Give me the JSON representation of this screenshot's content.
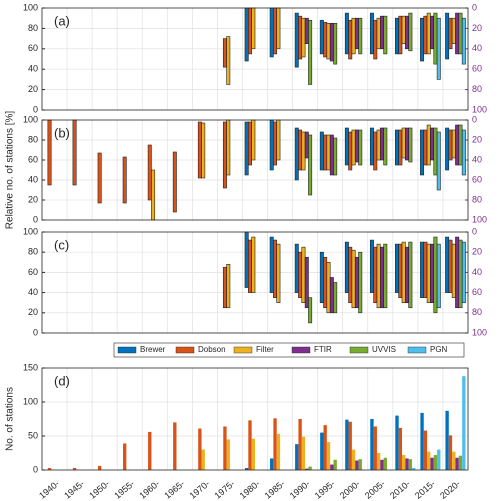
{
  "chart_data": [
    {
      "type": "range-bar",
      "label": "(a)",
      "categories": [
        null,
        null,
        null,
        null,
        null,
        null,
        null,
        null,
        null,
        null,
        null,
        null,
        null,
        null,
        null,
        null,
        null
      ],
      "ylim": [
        0,
        100
      ],
      "yticks": [
        0,
        20,
        40,
        60,
        80,
        100
      ],
      "y2lim": [
        100,
        0
      ],
      "y2ticks": [
        0,
        20,
        40,
        60,
        80,
        100
      ],
      "y2color": "#7E2F8E",
      "grid": true,
      "series": [
        {
          "name": "Brewer",
          "color": "#0072BD",
          "values": [
            null,
            null,
            null,
            null,
            null,
            null,
            null,
            null,
            [
              48,
              100
            ],
            [
              52,
              100
            ],
            [
              42,
              95
            ],
            [
              55,
              88
            ],
            [
              55,
              95
            ],
            [
              55,
              95
            ],
            [
              55,
              90
            ],
            [
              48,
              90
            ],
            [
              50,
              95
            ]
          ]
        },
        {
          "name": "Dobson",
          "color": "#D95319",
          "values": [
            null,
            null,
            null,
            null,
            null,
            null,
            null,
            [
              42,
              70
            ],
            [
              55,
              100
            ],
            [
              55,
              100
            ],
            [
              50,
              92
            ],
            [
              52,
              86
            ],
            [
              50,
              88
            ],
            [
              50,
              88
            ],
            [
              55,
              92
            ],
            [
              55,
              92
            ],
            [
              60,
              90
            ]
          ]
        },
        {
          "name": "Filter",
          "color": "#EDB120",
          "values": [
            null,
            null,
            null,
            null,
            null,
            null,
            null,
            [
              25,
              72
            ],
            [
              60,
              100
            ],
            [
              60,
              100
            ],
            [
              52,
              90
            ],
            [
              50,
              85
            ],
            [
              55,
              90
            ],
            [
              60,
              90
            ],
            [
              65,
              92
            ],
            [
              55,
              95
            ],
            [
              65,
              90
            ]
          ]
        },
        {
          "name": "FTIR",
          "color": "#7E2F8E",
          "values": [
            null,
            null,
            null,
            null,
            null,
            null,
            null,
            null,
            null,
            null,
            [
              65,
              90
            ],
            [
              48,
              85
            ],
            [
              60,
              90
            ],
            [
              60,
              92
            ],
            [
              60,
              92
            ],
            [
              60,
              92
            ],
            [
              55,
              95
            ]
          ]
        },
        {
          "name": "UVVIS",
          "color": "#77AC30",
          "values": [
            null,
            null,
            null,
            null,
            null,
            null,
            null,
            null,
            null,
            null,
            [
              25,
              88
            ],
            [
              45,
              85
            ],
            [
              55,
              90
            ],
            [
              55,
              92
            ],
            [
              58,
              95
            ],
            [
              45,
              95
            ],
            [
              55,
              95
            ]
          ]
        },
        {
          "name": "PGN",
          "color": "#4DBEEE",
          "values": [
            null,
            null,
            null,
            null,
            null,
            null,
            null,
            null,
            null,
            null,
            null,
            null,
            null,
            null,
            null,
            [
              30,
              90
            ],
            [
              45,
              90
            ]
          ]
        }
      ]
    },
    {
      "type": "range-bar",
      "label": "(b)",
      "ylabel": "Relative no. of stations [%]",
      "categories": [
        null,
        null,
        null,
        null,
        null,
        null,
        null,
        null,
        null,
        null,
        null,
        null,
        null,
        null,
        null,
        null,
        null
      ],
      "ylim": [
        0,
        100
      ],
      "yticks": [
        0,
        20,
        40,
        60,
        80,
        100
      ],
      "y2lim": [
        100,
        0
      ],
      "y2ticks": [
        0,
        20,
        40,
        60,
        80,
        100
      ],
      "y2color": "#7E2F8E",
      "grid": true,
      "series": [
        {
          "name": "Brewer",
          "color": "#0072BD",
          "values": [
            null,
            null,
            null,
            null,
            null,
            null,
            null,
            null,
            [
              45,
              98
            ],
            [
              50,
              100
            ],
            [
              40,
              92
            ],
            [
              50,
              88
            ],
            [
              55,
              92
            ],
            [
              55,
              92
            ],
            [
              55,
              90
            ],
            [
              45,
              90
            ],
            [
              50,
              92
            ]
          ]
        },
        {
          "name": "Dobson",
          "color": "#D95319",
          "values": [
            [
              35,
              100
            ],
            [
              35,
              100
            ],
            [
              17,
              67
            ],
            [
              17,
              63
            ],
            [
              20,
              75
            ],
            [
              8,
              68
            ],
            [
              42,
              98
            ],
            [
              32,
              98
            ],
            [
              55,
              98
            ],
            [
              55,
              98
            ],
            [
              50,
              90
            ],
            [
              50,
              85
            ],
            [
              50,
              88
            ],
            [
              50,
              88
            ],
            [
              55,
              90
            ],
            [
              55,
              90
            ],
            [
              60,
              90
            ]
          ]
        },
        {
          "name": "Filter",
          "color": "#EDB120",
          "values": [
            null,
            null,
            null,
            null,
            [
              0,
              50
            ],
            null,
            [
              42,
              97
            ],
            [
              45,
              100
            ],
            [
              60,
              100
            ],
            [
              60,
              100
            ],
            [
              50,
              88
            ],
            [
              50,
              85
            ],
            [
              55,
              90
            ],
            [
              60,
              90
            ],
            [
              62,
              92
            ],
            [
              55,
              95
            ],
            [
              62,
              90
            ]
          ]
        },
        {
          "name": "FTIR",
          "color": "#7E2F8E",
          "values": [
            null,
            null,
            null,
            null,
            null,
            null,
            null,
            null,
            null,
            null,
            [
              62,
              88
            ],
            [
              45,
              85
            ],
            [
              58,
              90
            ],
            [
              60,
              92
            ],
            [
              60,
              92
            ],
            [
              60,
              92
            ],
            [
              55,
              95
            ]
          ]
        },
        {
          "name": "UVVIS",
          "color": "#77AC30",
          "values": [
            null,
            null,
            null,
            null,
            null,
            null,
            null,
            null,
            null,
            null,
            [
              25,
              85
            ],
            [
              45,
              82
            ],
            [
              55,
              90
            ],
            [
              55,
              92
            ],
            [
              58,
              92
            ],
            [
              45,
              92
            ],
            [
              55,
              95
            ]
          ]
        },
        {
          "name": "PGN",
          "color": "#4DBEEE",
          "values": [
            null,
            null,
            null,
            null,
            null,
            null,
            null,
            null,
            null,
            null,
            null,
            null,
            null,
            null,
            null,
            [
              30,
              88
            ],
            [
              45,
              90
            ]
          ]
        }
      ]
    },
    {
      "type": "range-bar",
      "label": "(c)",
      "categories": [
        null,
        null,
        null,
        null,
        null,
        null,
        null,
        null,
        null,
        null,
        null,
        null,
        null,
        null,
        null,
        null,
        null
      ],
      "ylim": [
        0,
        100
      ],
      "yticks": [
        0,
        20,
        40,
        60,
        80,
        100
      ],
      "y2lim": [
        100,
        0
      ],
      "y2ticks": [
        0,
        20,
        40,
        60,
        80,
        100
      ],
      "y2color": "#7E2F8E",
      "grid": true,
      "series": [
        {
          "name": "Brewer",
          "color": "#0072BD",
          "values": [
            null,
            null,
            null,
            null,
            null,
            null,
            null,
            null,
            [
              45,
              100
            ],
            [
              40,
              95
            ],
            [
              40,
              88
            ],
            [
              30,
              80
            ],
            [
              40,
              90
            ],
            [
              40,
              92
            ],
            [
              40,
              88
            ],
            [
              35,
              90
            ],
            [
              40,
              95
            ]
          ]
        },
        {
          "name": "Dobson",
          "color": "#D95319",
          "values": [
            null,
            null,
            null,
            null,
            null,
            null,
            null,
            [
              25,
              65
            ],
            [
              40,
              92
            ],
            [
              35,
              92
            ],
            [
              35,
              80
            ],
            [
              25,
              75
            ],
            [
              30,
              85
            ],
            [
              30,
              85
            ],
            [
              35,
              88
            ],
            [
              35,
              90
            ],
            [
              40,
              92
            ]
          ]
        },
        {
          "name": "Filter",
          "color": "#EDB120",
          "values": [
            null,
            null,
            null,
            null,
            null,
            null,
            null,
            [
              25,
              68
            ],
            [
              40,
              95
            ],
            [
              30,
              88
            ],
            [
              30,
              85
            ],
            [
              20,
              70
            ],
            [
              25,
              82
            ],
            [
              25,
              88
            ],
            [
              30,
              90
            ],
            [
              30,
              88
            ],
            [
              35,
              88
            ]
          ]
        },
        {
          "name": "FTIR",
          "color": "#7E2F8E",
          "values": [
            null,
            null,
            null,
            null,
            null,
            null,
            null,
            null,
            null,
            null,
            [
              25,
              75
            ],
            [
              20,
              55
            ],
            [
              25,
              75
            ],
            [
              25,
              85
            ],
            [
              30,
              85
            ],
            [
              30,
              88
            ],
            [
              25,
              95
            ]
          ]
        },
        {
          "name": "UVVIS",
          "color": "#77AC30",
          "values": [
            null,
            null,
            null,
            null,
            null,
            null,
            null,
            null,
            null,
            null,
            [
              10,
              35
            ],
            [
              20,
              50
            ],
            [
              20,
              80
            ],
            [
              25,
              88
            ],
            [
              25,
              90
            ],
            [
              20,
              95
            ],
            [
              25,
              92
            ]
          ]
        },
        {
          "name": "PGN",
          "color": "#4DBEEE",
          "values": [
            null,
            null,
            null,
            null,
            null,
            null,
            null,
            null,
            null,
            null,
            null,
            null,
            null,
            null,
            null,
            [
              25,
              88
            ],
            [
              30,
              90
            ]
          ]
        }
      ]
    },
    {
      "type": "bar",
      "label": "(d)",
      "ylabel": "No. of stations",
      "categories": [
        "1940-",
        "1945-",
        "1950-",
        "1955-",
        "1960-",
        "1965-",
        "1970-",
        "1975-",
        "1980-",
        "1985-",
        "1990-",
        "1995-",
        "2000-",
        "2005-",
        "2010-",
        "2015-",
        "2020-"
      ],
      "ylim": [
        0,
        150
      ],
      "yticks": [
        0,
        50,
        100,
        150
      ],
      "grid": true,
      "legend": "top",
      "series": [
        {
          "name": "Brewer",
          "color": "#0072BD",
          "values": [
            null,
            null,
            null,
            null,
            null,
            null,
            null,
            null,
            3,
            17,
            38,
            55,
            74,
            75,
            80,
            84,
            87
          ]
        },
        {
          "name": "Dobson",
          "color": "#D95319",
          "values": [
            3,
            3,
            6,
            39,
            56,
            70,
            61,
            64,
            73,
            76,
            75,
            66,
            71,
            64,
            62,
            58,
            51
          ]
        },
        {
          "name": "Filter",
          "color": "#EDB120",
          "values": [
            null,
            null,
            null,
            null,
            null,
            null,
            30,
            45,
            46,
            53,
            49,
            41,
            30,
            25,
            22,
            27,
            27
          ]
        },
        {
          "name": "FTIR",
          "color": "#7E2F8E",
          "values": [
            null,
            null,
            null,
            null,
            null,
            null,
            null,
            null,
            null,
            null,
            2,
            8,
            14,
            15,
            17,
            18,
            18
          ]
        },
        {
          "name": "UVVIS",
          "color": "#77AC30",
          "values": [
            null,
            null,
            null,
            null,
            null,
            null,
            null,
            null,
            null,
            null,
            5,
            15,
            16,
            18,
            16,
            22,
            21
          ]
        },
        {
          "name": "PGN",
          "color": "#4DBEEE",
          "values": [
            null,
            null,
            null,
            null,
            null,
            null,
            null,
            null,
            null,
            null,
            null,
            null,
            null,
            null,
            3,
            30,
            138
          ]
        }
      ]
    }
  ]
}
